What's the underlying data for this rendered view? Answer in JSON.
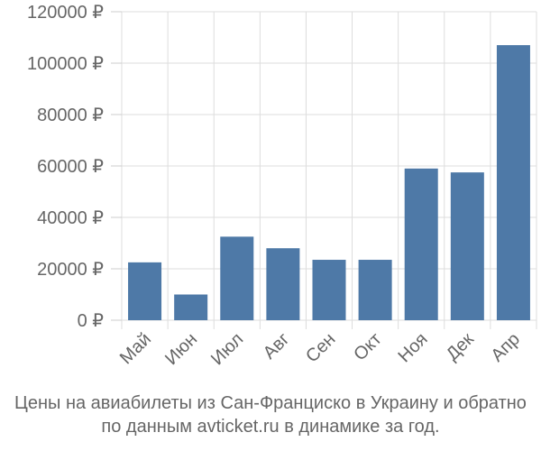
{
  "chart_data": {
    "type": "bar",
    "categories": [
      "Май",
      "Июн",
      "Июл",
      "Авг",
      "Сен",
      "Окт",
      "Ноя",
      "Дек",
      "Апр"
    ],
    "values": [
      22500,
      10000,
      32500,
      28000,
      23500,
      23500,
      59000,
      57500,
      107000
    ],
    "ylim": [
      0,
      120000
    ],
    "yticks": [
      0,
      20000,
      40000,
      60000,
      80000,
      100000,
      120000
    ],
    "ytick_labels": [
      "0 ₽",
      "20000 ₽",
      "40000 ₽",
      "60000 ₽",
      "80000 ₽",
      "100000 ₽",
      "120000 ₽"
    ],
    "grid": true,
    "bar_color": "#4e79a7",
    "caption_line1": "Цены на авиабилеты из Сан-Франциско в Украину и обратно",
    "caption_line2": "по данным avticket.ru в динамике за год."
  }
}
